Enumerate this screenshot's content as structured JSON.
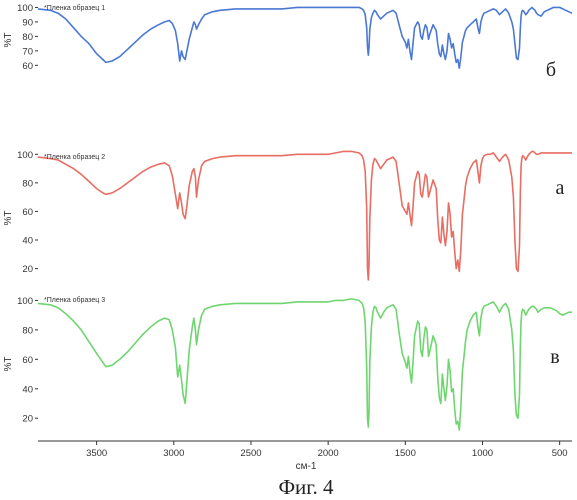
{
  "chart_data": {
    "type": "line",
    "xlabel": "см-1",
    "caption": "Фиг. 4",
    "xlim": [
      3880,
      420
    ],
    "x_ticks": [
      3500,
      3000,
      2500,
      2000,
      1500,
      1000,
      500
    ],
    "x_tick_labels": [
      "3500",
      "3000",
      "2500",
      "2000",
      "1500",
      "1000",
      "500"
    ],
    "panels": [
      {
        "ylabel": "%T",
        "ylim": [
          54,
          101
        ],
        "y_ticks": [
          60,
          70,
          80,
          90,
          100
        ],
        "y_tick_labels": [
          "60",
          "70",
          "80",
          "90",
          "100"
        ],
        "legend": "*Пленка образец 1",
        "marker": "б",
        "series": [
          {
            "name": "*Пленка образец 1",
            "color": "#4a78d4",
            "x": [
              3880,
              3800,
              3750,
              3700,
              3650,
              3600,
              3550,
              3500,
              3460,
              3440,
              3400,
              3350,
              3300,
              3250,
              3200,
              3150,
              3100,
              3060,
              3030,
              3010,
              2990,
              2975,
              2962,
              2950,
              2940,
              2926,
              2915,
              2900,
              2880,
              2870,
              2860,
              2853,
              2840,
              2820,
              2800,
              2750,
              2700,
              2600,
              2500,
              2400,
              2300,
              2200,
              2100,
              2000,
              1950,
              1900,
              1850,
              1800,
              1780,
              1770,
              1760,
              1750,
              1745,
              1740,
              1735,
              1730,
              1720,
              1710,
              1700,
              1690,
              1680,
              1660,
              1640,
              1620,
              1600,
              1580,
              1560,
              1540,
              1520,
              1500,
              1490,
              1480,
              1470,
              1460,
              1450,
              1440,
              1420,
              1410,
              1400,
              1390,
              1380,
              1370,
              1360,
              1350,
              1340,
              1320,
              1300,
              1290,
              1280,
              1270,
              1260,
              1250,
              1240,
              1230,
              1220,
              1210,
              1200,
              1190,
              1180,
              1170,
              1160,
              1150,
              1140,
              1130,
              1120,
              1110,
              1100,
              1080,
              1060,
              1040,
              1030,
              1020,
              1010,
              1000,
              990,
              970,
              950,
              930,
              910,
              890,
              870,
              850,
              830,
              810,
              800,
              790,
              780,
              770,
              760,
              755,
              750,
              745,
              740,
              730,
              720,
              710,
              700,
              690,
              680,
              670,
              660,
              650,
              640,
              620,
              600,
              580,
              560,
              540,
              520,
              500,
              480,
              460,
              440,
              420
            ],
            "y": [
              99,
              98,
              96,
              92,
              86,
              80,
              75,
              68,
              64,
              62,
              63,
              66,
              71,
              76,
              81,
              85,
              88,
              90,
              91,
              89,
              84,
              75,
              63,
              70,
              66,
              64,
              70,
              78,
              86,
              90,
              88,
              85,
              88,
              92,
              95,
              97,
              98,
              99,
              99,
              99,
              99,
              100,
              100,
              100,
              100,
              100,
              100,
              100,
              99,
              98,
              95,
              86,
              73,
              67,
              72,
              85,
              93,
              96,
              98,
              97,
              95,
              92,
              94,
              96,
              97,
              98,
              96,
              88,
              80,
              76,
              72,
              78,
              70,
              64,
              75,
              86,
              90,
              88,
              80,
              78,
              84,
              88,
              86,
              78,
              82,
              88,
              84,
              75,
              68,
              66,
              74,
              68,
              64,
              70,
              82,
              78,
              72,
              75,
              68,
              62,
              64,
              58,
              66,
              76,
              80,
              84,
              86,
              88,
              90,
              92,
              86,
              82,
              90,
              94,
              96,
              97,
              98,
              99,
              98,
              95,
              97,
              99,
              96,
              90,
              85,
              75,
              65,
              64,
              72,
              85,
              94,
              97,
              98,
              97,
              95,
              96,
              98,
              99,
              100,
              99,
              98,
              96,
              95,
              94,
              97,
              98,
              99,
              100,
              100,
              100,
              99,
              98,
              97,
              96
            ]
          }
        ]
      },
      {
        "ylabel": "%T",
        "ylim": [
          12,
          103
        ],
        "y_ticks": [
          20,
          40,
          60,
          80,
          100
        ],
        "y_tick_labels": [
          "20",
          "40",
          "60",
          "80",
          "100"
        ],
        "legend": "*Пленка образец 2",
        "marker": "а",
        "series": [
          {
            "name": "*Пленка образец 2",
            "color": "#e86d63",
            "x": [
              3880,
              3800,
              3750,
              3700,
              3650,
              3600,
              3550,
              3500,
              3460,
              3440,
              3400,
              3350,
              3300,
              3250,
              3200,
              3150,
              3100,
              3060,
              3030,
              3010,
              2990,
              2975,
              2962,
              2950,
              2940,
              2926,
              2915,
              2900,
              2880,
              2870,
              2860,
              2853,
              2840,
              2820,
              2800,
              2750,
              2700,
              2600,
              2500,
              2400,
              2300,
              2200,
              2100,
              2000,
              1950,
              1900,
              1850,
              1800,
              1780,
              1770,
              1760,
              1750,
              1745,
              1740,
              1735,
              1730,
              1720,
              1710,
              1700,
              1690,
              1680,
              1660,
              1640,
              1620,
              1600,
              1580,
              1560,
              1540,
              1520,
              1500,
              1490,
              1480,
              1470,
              1460,
              1450,
              1440,
              1420,
              1410,
              1400,
              1390,
              1380,
              1370,
              1360,
              1350,
              1340,
              1320,
              1300,
              1290,
              1280,
              1270,
              1260,
              1250,
              1240,
              1230,
              1220,
              1210,
              1200,
              1190,
              1180,
              1170,
              1160,
              1150,
              1140,
              1130,
              1120,
              1110,
              1100,
              1080,
              1060,
              1040,
              1030,
              1020,
              1010,
              1000,
              990,
              970,
              950,
              930,
              910,
              890,
              870,
              850,
              830,
              810,
              800,
              790,
              780,
              770,
              760,
              755,
              750,
              745,
              740,
              730,
              720,
              710,
              700,
              690,
              680,
              670,
              660,
              650,
              640,
              620,
              600,
              580,
              560,
              540,
              520,
              500,
              480,
              460,
              440,
              420
            ],
            "y": [
              98,
              97,
              96,
              93,
              90,
              86,
              81,
              76,
              73,
              72,
              73,
              76,
              80,
              84,
              88,
              91,
              93,
              94,
              92,
              85,
              72,
              62,
              73,
              66,
              58,
              55,
              64,
              78,
              88,
              90,
              84,
              70,
              82,
              92,
              95,
              97,
              98,
              99,
              99,
              99,
              99,
              100,
              100,
              100,
              101,
              102,
              102,
              101,
              99,
              96,
              88,
              62,
              20,
              12,
              22,
              55,
              82,
              93,
              97,
              96,
              94,
              90,
              93,
              96,
              97,
              98,
              95,
              80,
              64,
              60,
              58,
              66,
              58,
              50,
              63,
              80,
              88,
              86,
              72,
              70,
              78,
              86,
              84,
              70,
              74,
              82,
              76,
              55,
              40,
              38,
              56,
              44,
              36,
              46,
              66,
              58,
              42,
              46,
              32,
              20,
              26,
              18,
              34,
              58,
              68,
              78,
              84,
              90,
              94,
              96,
              88,
              80,
              92,
              97,
              99,
              100,
              100,
              101,
              98,
              95,
              98,
              100,
              96,
              84,
              70,
              40,
              20,
              18,
              36,
              72,
              92,
              97,
              99,
              98,
              96,
              98,
              100,
              101,
              102,
              102,
              101,
              100,
              100,
              101,
              101,
              101,
              101,
              101,
              101,
              101,
              101,
              101,
              101,
              101
            ]
          }
        ]
      },
      {
        "ylabel": "%T",
        "ylim": [
          12,
          103
        ],
        "y_ticks": [
          20,
          40,
          60,
          80,
          100
        ],
        "y_tick_labels": [
          "20",
          "40",
          "60",
          "80",
          "100"
        ],
        "legend": "*Пленка образец 3",
        "marker": "в",
        "series": [
          {
            "name": "*Пленка образец 3",
            "color": "#6fd66f",
            "x": [
              3880,
              3800,
              3750,
              3700,
              3650,
              3600,
              3550,
              3500,
              3460,
              3440,
              3400,
              3350,
              3300,
              3250,
              3200,
              3150,
              3100,
              3060,
              3030,
              3010,
              2990,
              2975,
              2962,
              2950,
              2940,
              2926,
              2915,
              2900,
              2880,
              2870,
              2860,
              2853,
              2840,
              2820,
              2800,
              2750,
              2700,
              2600,
              2500,
              2400,
              2300,
              2200,
              2100,
              2000,
              1950,
              1900,
              1850,
              1800,
              1780,
              1770,
              1760,
              1750,
              1745,
              1740,
              1735,
              1730,
              1720,
              1710,
              1700,
              1690,
              1680,
              1660,
              1640,
              1620,
              1600,
              1580,
              1560,
              1540,
              1520,
              1500,
              1490,
              1480,
              1470,
              1460,
              1450,
              1440,
              1420,
              1410,
              1400,
              1390,
              1380,
              1370,
              1360,
              1350,
              1340,
              1320,
              1300,
              1290,
              1280,
              1270,
              1260,
              1250,
              1240,
              1230,
              1220,
              1210,
              1200,
              1190,
              1180,
              1170,
              1160,
              1150,
              1140,
              1130,
              1120,
              1110,
              1100,
              1080,
              1060,
              1040,
              1030,
              1020,
              1010,
              1000,
              990,
              970,
              950,
              930,
              910,
              890,
              870,
              850,
              830,
              810,
              800,
              790,
              780,
              770,
              760,
              755,
              750,
              745,
              740,
              730,
              720,
              710,
              700,
              690,
              680,
              670,
              660,
              650,
              640,
              620,
              600,
              580,
              560,
              540,
              520,
              500,
              480,
              460,
              440,
              420
            ],
            "y": [
              98,
              97,
              95,
              91,
              86,
              80,
              72,
              64,
              58,
              55,
              56,
              60,
              65,
              71,
              77,
              82,
              86,
              88,
              87,
              80,
              68,
              48,
              56,
              46,
              36,
              30,
              45,
              66,
              82,
              88,
              80,
              70,
              80,
              90,
              94,
              96,
              97,
              98,
              98,
              98,
              98,
              99,
              99,
              99,
              100,
              100,
              101,
              100,
              98,
              95,
              85,
              55,
              20,
              14,
              24,
              58,
              82,
              92,
              96,
              95,
              92,
              88,
              92,
              95,
              96,
              97,
              94,
              78,
              64,
              58,
              54,
              62,
              52,
              44,
              58,
              76,
              86,
              84,
              66,
              62,
              74,
              82,
              80,
              62,
              66,
              76,
              70,
              48,
              34,
              30,
              50,
              40,
              32,
              42,
              60,
              52,
              38,
              40,
              26,
              16,
              18,
              12,
              28,
              52,
              62,
              72,
              80,
              86,
              90,
              92,
              82,
              76,
              88,
              94,
              96,
              97,
              98,
              99,
              96,
              92,
              96,
              98,
              94,
              80,
              66,
              36,
              22,
              20,
              36,
              68,
              86,
              92,
              94,
              93,
              90,
              92,
              94,
              95,
              96,
              96,
              95,
              94,
              92,
              94,
              95,
              95,
              95,
              94,
              93,
              91,
              90,
              91,
              92,
              92
            ]
          }
        ]
      }
    ]
  }
}
